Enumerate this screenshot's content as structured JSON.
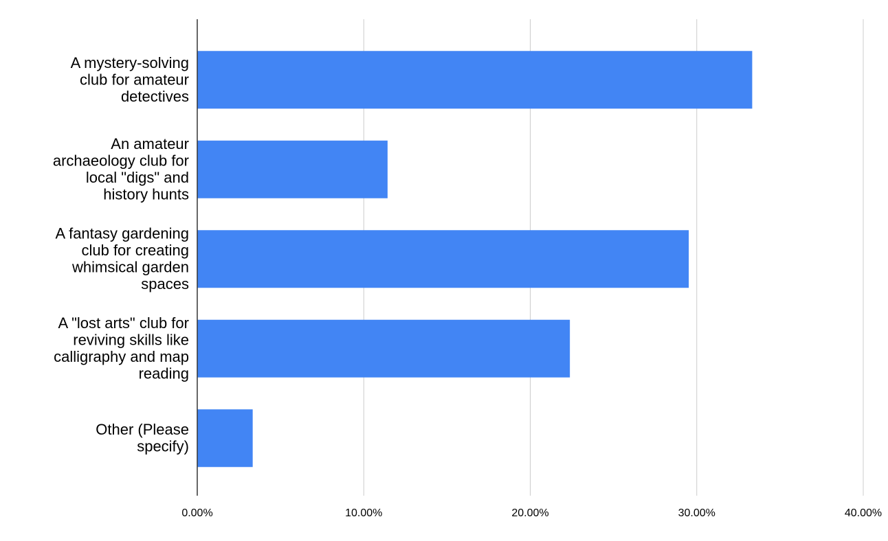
{
  "chart_data": {
    "type": "bar",
    "orientation": "horizontal",
    "title": "",
    "xlabel": "",
    "ylabel": "",
    "categories": [
      [
        "A mystery-solving",
        "club for amateur",
        "detectives"
      ],
      [
        "An amateur",
        "archaeology club for",
        "local \"digs\" and",
        "history hunts"
      ],
      [
        "A fantasy gardening",
        "club for creating",
        "whimsical garden",
        "spaces"
      ],
      [
        "A \"lost arts\" club for",
        "reviving skills like",
        "calligraphy and map",
        "reading"
      ],
      [
        "Other (Please",
        "specify)"
      ]
    ],
    "values": [
      33.33,
      11.43,
      29.52,
      22.38,
      3.33
    ],
    "xlim": [
      0,
      40
    ],
    "ticks": [
      "0.00%",
      "10.00%",
      "20.00%",
      "30.00%",
      "40.00%"
    ],
    "tick_values": [
      0,
      10,
      20,
      30,
      40
    ],
    "grid": true,
    "legend": "none",
    "bar_color": "#4285F4",
    "grid_color": "#cccccc",
    "axis_color": "#333333"
  }
}
